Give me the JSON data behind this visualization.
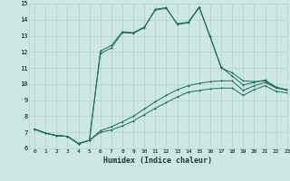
{
  "xlabel": "Humidex (Indice chaleur)",
  "xlim": [
    -0.5,
    23
  ],
  "ylim": [
    6,
    15
  ],
  "background_color": "#cde8e4",
  "grid_color": "#b0d4cc",
  "line_color": "#1a6b5a",
  "series": [
    {
      "x": [
        0,
        1,
        2,
        3,
        4,
        5,
        6,
        7,
        8,
        9,
        10,
        11,
        12,
        13,
        14,
        15,
        16,
        17,
        18,
        19,
        20,
        21,
        22,
        23
      ],
      "y": [
        7.2,
        6.95,
        6.8,
        6.75,
        6.3,
        6.5,
        7.0,
        7.15,
        7.4,
        7.7,
        8.1,
        8.5,
        8.85,
        9.2,
        9.5,
        9.6,
        9.7,
        9.75,
        9.75,
        9.3,
        9.65,
        9.9,
        9.55,
        9.45
      ]
    },
    {
      "x": [
        0,
        1,
        2,
        3,
        4,
        5,
        6,
        7,
        8,
        9,
        10,
        11,
        12,
        13,
        14,
        15,
        16,
        17,
        18,
        19,
        20,
        21,
        22,
        23
      ],
      "y": [
        7.2,
        6.95,
        6.8,
        6.75,
        6.3,
        6.5,
        7.1,
        7.35,
        7.65,
        8.0,
        8.45,
        8.9,
        9.3,
        9.65,
        9.9,
        10.05,
        10.15,
        10.2,
        10.2,
        9.6,
        9.9,
        10.1,
        9.75,
        9.65
      ]
    },
    {
      "x": [
        0,
        1,
        2,
        3,
        4,
        5,
        6,
        7,
        8,
        9,
        10,
        11,
        12,
        13,
        14,
        15,
        16,
        17,
        18,
        19,
        20,
        21,
        22,
        23
      ],
      "y": [
        7.2,
        6.95,
        6.8,
        6.75,
        6.3,
        6.5,
        11.9,
        12.25,
        13.2,
        13.15,
        13.5,
        14.65,
        14.75,
        13.7,
        13.8,
        14.75,
        12.9,
        11.0,
        10.7,
        10.2,
        10.15,
        10.2,
        9.8,
        9.6
      ]
    },
    {
      "x": [
        0,
        1,
        2,
        3,
        4,
        5,
        6,
        7,
        8,
        9,
        10,
        11,
        12,
        13,
        14,
        15,
        16,
        17,
        18,
        19,
        20,
        21,
        22,
        23
      ],
      "y": [
        7.2,
        6.95,
        6.8,
        6.75,
        6.3,
        6.5,
        12.05,
        12.4,
        13.25,
        13.2,
        13.55,
        14.6,
        14.7,
        13.75,
        13.85,
        14.8,
        12.95,
        11.05,
        10.5,
        9.95,
        10.1,
        10.25,
        9.8,
        9.65
      ]
    }
  ],
  "yticks": [
    6,
    7,
    8,
    9,
    10,
    11,
    12,
    13,
    14,
    15
  ],
  "xticks": [
    0,
    1,
    2,
    3,
    4,
    5,
    6,
    7,
    8,
    9,
    10,
    11,
    12,
    13,
    14,
    15,
    16,
    17,
    18,
    19,
    20,
    21,
    22,
    23
  ]
}
